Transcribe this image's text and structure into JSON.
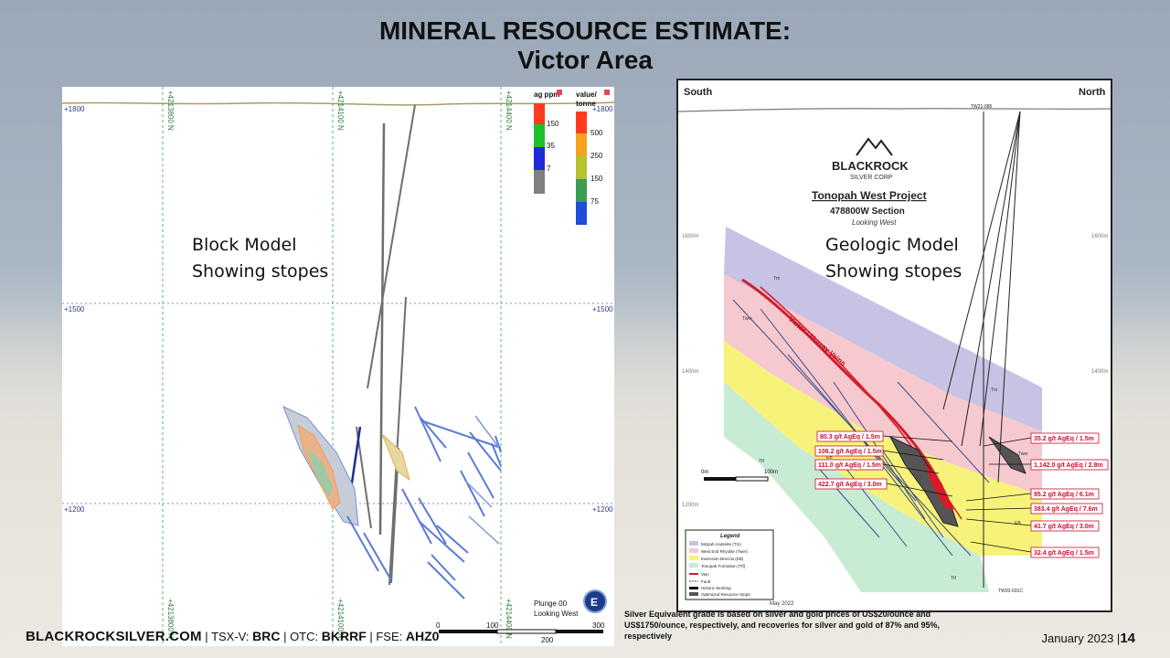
{
  "title": {
    "line1": "MINERAL RESOURCE ESTIMATE:",
    "line2": "Victor Area"
  },
  "left_panel": {
    "label_line1": "Block Model",
    "label_line2": "Showing stopes",
    "northings": [
      "+4213800 N",
      "+4214100 N",
      "+4214400 N"
    ],
    "elevations": [
      "+1800",
      "+1500",
      "+1200"
    ],
    "legend1_title": "ag ppm",
    "legend1_values": [
      "150",
      "35",
      "7"
    ],
    "legend2_title_line1": "value/",
    "legend2_title_line2": "tonne",
    "legend2_values": [
      "500",
      "250",
      "150",
      "75"
    ],
    "plunge_line1": "Plunge 00",
    "plunge_line2": "Looking West",
    "compass": "E",
    "scale_values": [
      "0",
      "100",
      "200",
      "300"
    ]
  },
  "right_panel": {
    "label_line1": "Geologic Model",
    "label_line2": "Showing stopes",
    "south": "South",
    "north": "North",
    "logo_line1": "BLACKROCK",
    "logo_line2": "SILVER CORP",
    "project": "Tonopah West Project",
    "section": "478800W Section",
    "looking": "Looking West",
    "elev_labels": [
      "1600m",
      "1400m",
      "1200m"
    ],
    "scale_start": "0m",
    "scale_end": "100m",
    "vein_label": "Victor / Murray Veins",
    "intercepts_left": [
      "80.3 g/t AgEq / 1.5m",
      "106.2 g/t AgEq / 1.5m",
      "111.0 g/t AgEq / 1.5m",
      "422.7 g/t AgEq / 3.0m"
    ],
    "intercepts_right": [
      "35.2 g/t AgEq / 1.5m",
      "1,142.0 g/t AgEq / 2.8m",
      "95.2 g/t AgEq / 6.1m",
      "383.4 g/t AgEq / 7.6m",
      "41.7 g/t AgEq / 3.0m",
      "32.4 g/t AgEq / 1.5m"
    ],
    "legend_title": "Legend",
    "legend_items": [
      "Mizpah Andesite (Tm)",
      "West End Rhyolite (Twer)",
      "Extension Breccia (EB)",
      "Tonopah Formation (Ttf)",
      "Vein",
      "Fault",
      "Historic Working",
      "Optimized Resource Stope"
    ],
    "date": "May 2022",
    "hole_labels": [
      "TW21-085",
      "TW20-031C"
    ],
    "unit_labels": [
      "Tm",
      "Twer",
      "EB",
      "Ttf",
      "Tm",
      "Twer",
      "EB",
      "Ttf"
    ]
  },
  "footer": {
    "brand": "BLACKROCKSILVER.COM",
    "tsx_label": "TSX-V:",
    "tsx_value": "BRC",
    "otc_label": "OTC:",
    "otc_value": "BKRRF",
    "fse_label": "FSE:",
    "fse_value": "AHZ0"
  },
  "footnote": "Silver Equivalent grade is based on silver and gold prices of US$20/ounce and US$1750/ounce, respectively, and recoveries for silver and gold of 87% and 95%, respectively",
  "page": {
    "date": "January  2023",
    "number": "14"
  },
  "colors": {
    "legend_red": "#ff3b1f",
    "legend_green": "#1fbf2a",
    "legend_blue": "#1f2bd8",
    "legend_gray": "#7f7f7f",
    "tm": "#c8c3e4",
    "twer": "#f6c9cf",
    "eb": "#f7f37a",
    "ttf": "#c8ebd3"
  }
}
